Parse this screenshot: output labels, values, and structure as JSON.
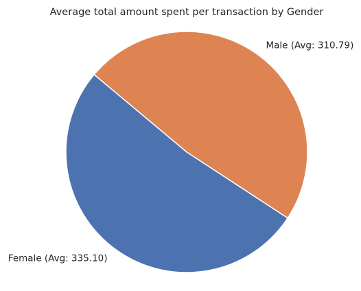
{
  "chart_data": {
    "type": "pie",
    "title": "Average total amount spent per transaction by Gender",
    "slices": [
      {
        "category": "Female",
        "value": 335.1,
        "label": "Female (Avg: 335.10)",
        "color": "#4C72B0"
      },
      {
        "category": "Male",
        "value": 310.79,
        "label": "Male (Avg: 310.79)",
        "color": "#DD8452"
      }
    ],
    "start_angle_deg": 140,
    "direction": "counterclockwise",
    "slice_edge_color": "#ffffff"
  }
}
